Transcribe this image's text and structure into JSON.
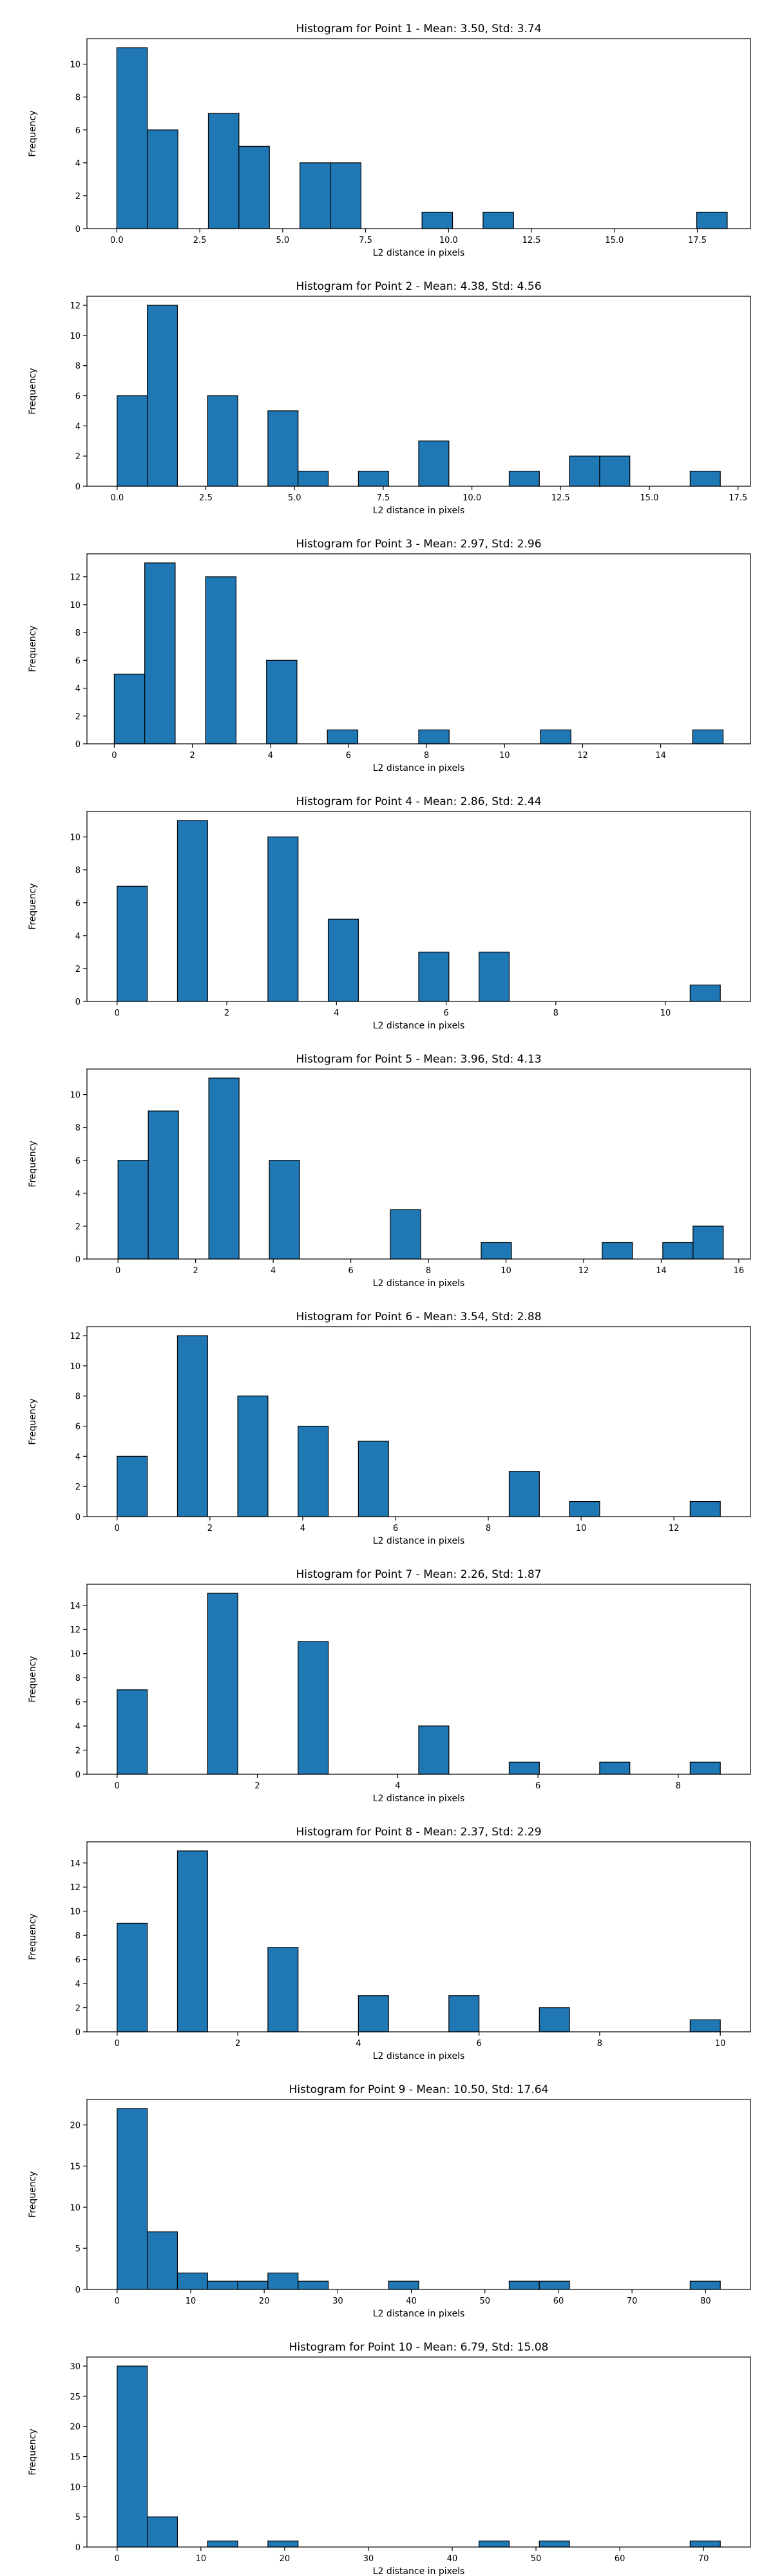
{
  "chart_data": [
    {
      "type": "bar",
      "title": "Histogram for Point 1 - Mean: 3.50, Std: 3.74",
      "xlabel": "L2 distance in pixels",
      "ylabel": "Frequency",
      "xlim": [
        -0.9,
        19.1
      ],
      "ylim": [
        0,
        11.55
      ],
      "xticks": [
        {
          "v": 0,
          "label": "0.0"
        },
        {
          "v": 2.5,
          "label": "2.5"
        },
        {
          "v": 5,
          "label": "5.0"
        },
        {
          "v": 7.5,
          "label": "7.5"
        },
        {
          "v": 10,
          "label": "10.0"
        },
        {
          "v": 12.5,
          "label": "12.5"
        },
        {
          "v": 15,
          "label": "15.0"
        },
        {
          "v": 17.5,
          "label": "17.5"
        }
      ],
      "yticks": [
        {
          "v": 0,
          "label": "0"
        },
        {
          "v": 2,
          "label": "2"
        },
        {
          "v": 4,
          "label": "4"
        },
        {
          "v": 6,
          "label": "6"
        },
        {
          "v": 8,
          "label": "8"
        },
        {
          "v": 10,
          "label": "10"
        }
      ],
      "bins": [
        0,
        0.92,
        1.84,
        2.76,
        3.68,
        4.6,
        5.52,
        6.44,
        7.36,
        8.28,
        9.2,
        10.12,
        11.04,
        11.96,
        12.88,
        13.8,
        14.72,
        15.64,
        16.56,
        17.48,
        18.4
      ],
      "counts": [
        11,
        6,
        0,
        7,
        5,
        0,
        4,
        4,
        0,
        0,
        1,
        0,
        1,
        0,
        0,
        0,
        0,
        0,
        0,
        1
      ]
    },
    {
      "type": "bar",
      "title": "Histogram for Point 2 - Mean: 4.38, Std: 4.56",
      "xlabel": "L2 distance in pixels",
      "ylabel": "Frequency",
      "xlim": [
        -0.85,
        17.85
      ],
      "ylim": [
        0,
        12.6
      ],
      "xticks": [
        {
          "v": 0,
          "label": "0.0"
        },
        {
          "v": 2.5,
          "label": "2.5"
        },
        {
          "v": 5,
          "label": "5.0"
        },
        {
          "v": 7.5,
          "label": "7.5"
        },
        {
          "v": 10,
          "label": "10.0"
        },
        {
          "v": 12.5,
          "label": "12.5"
        },
        {
          "v": 15,
          "label": "15.0"
        },
        {
          "v": 17.5,
          "label": "17.5"
        }
      ],
      "yticks": [
        {
          "v": 0,
          "label": "0"
        },
        {
          "v": 2,
          "label": "2"
        },
        {
          "v": 4,
          "label": "4"
        },
        {
          "v": 6,
          "label": "6"
        },
        {
          "v": 8,
          "label": "8"
        },
        {
          "v": 10,
          "label": "10"
        },
        {
          "v": 12,
          "label": "12"
        }
      ],
      "bins": [
        0,
        0.85,
        1.7,
        2.55,
        3.4,
        4.25,
        5.1,
        5.95,
        6.8,
        7.65,
        8.5,
        9.35,
        10.2,
        11.05,
        11.9,
        12.75,
        13.6,
        14.45,
        15.3,
        16.15,
        17.0
      ],
      "counts": [
        6,
        12,
        0,
        6,
        0,
        5,
        1,
        0,
        1,
        0,
        3,
        0,
        0,
        1,
        0,
        2,
        2,
        0,
        0,
        1
      ]
    },
    {
      "type": "bar",
      "title": "Histogram for Point 3 - Mean: 2.97, Std: 2.96",
      "xlabel": "L2 distance in pixels",
      "ylabel": "Frequency",
      "xlim": [
        -0.7,
        16.3
      ],
      "ylim": [
        0,
        13.65
      ],
      "xticks": [
        {
          "v": 0,
          "label": "0"
        },
        {
          "v": 2,
          "label": "2"
        },
        {
          "v": 4,
          "label": "4"
        },
        {
          "v": 6,
          "label": "6"
        },
        {
          "v": 8,
          "label": "8"
        },
        {
          "v": 10,
          "label": "10"
        },
        {
          "v": 12,
          "label": "12"
        },
        {
          "v": 14,
          "label": "14"
        }
      ],
      "yticks": [
        {
          "v": 0,
          "label": "0"
        },
        {
          "v": 2,
          "label": "2"
        },
        {
          "v": 4,
          "label": "4"
        },
        {
          "v": 6,
          "label": "6"
        },
        {
          "v": 8,
          "label": "8"
        },
        {
          "v": 10,
          "label": "10"
        },
        {
          "v": 12,
          "label": "12"
        }
      ],
      "bins": [
        0,
        0.78,
        1.56,
        2.34,
        3.12,
        3.9,
        4.68,
        5.46,
        6.24,
        7.02,
        7.8,
        8.58,
        9.36,
        10.14,
        10.92,
        11.7,
        12.48,
        13.26,
        14.04,
        14.82,
        15.6
      ],
      "counts": [
        5,
        13,
        0,
        12,
        0,
        6,
        0,
        1,
        0,
        0,
        1,
        0,
        0,
        0,
        1,
        0,
        0,
        0,
        0,
        1
      ]
    },
    {
      "type": "bar",
      "title": "Histogram for Point 4 - Mean: 2.86, Std: 2.44",
      "xlabel": "L2 distance in pixels",
      "ylabel": "Frequency",
      "xlim": [
        -0.55,
        11.55
      ],
      "ylim": [
        0,
        11.55
      ],
      "xticks": [
        {
          "v": 0,
          "label": "0"
        },
        {
          "v": 2,
          "label": "2"
        },
        {
          "v": 4,
          "label": "4"
        },
        {
          "v": 6,
          "label": "6"
        },
        {
          "v": 8,
          "label": "8"
        },
        {
          "v": 10,
          "label": "10"
        }
      ],
      "yticks": [
        {
          "v": 0,
          "label": "0"
        },
        {
          "v": 2,
          "label": "2"
        },
        {
          "v": 4,
          "label": "4"
        },
        {
          "v": 6,
          "label": "6"
        },
        {
          "v": 8,
          "label": "8"
        },
        {
          "v": 10,
          "label": "10"
        }
      ],
      "bins": [
        0,
        0.55,
        1.1,
        1.65,
        2.2,
        2.75,
        3.3,
        3.85,
        4.4,
        4.95,
        5.5,
        6.05,
        6.6,
        7.15,
        7.7,
        8.25,
        8.8,
        9.35,
        9.9,
        10.45,
        11.0
      ],
      "counts": [
        7,
        0,
        11,
        0,
        0,
        10,
        0,
        5,
        0,
        0,
        3,
        0,
        3,
        0,
        0,
        0,
        0,
        0,
        0,
        1
      ]
    },
    {
      "type": "bar",
      "title": "Histogram for Point 5 - Mean: 3.96, Std: 4.13",
      "xlabel": "L2 distance in pixels",
      "ylabel": "Frequency",
      "xlim": [
        -0.8,
        16.3
      ],
      "ylim": [
        0,
        11.55
      ],
      "xticks": [
        {
          "v": 0,
          "label": "0"
        },
        {
          "v": 2,
          "label": "2"
        },
        {
          "v": 4,
          "label": "4"
        },
        {
          "v": 6,
          "label": "6"
        },
        {
          "v": 8,
          "label": "8"
        },
        {
          "v": 10,
          "label": "10"
        },
        {
          "v": 12,
          "label": "12"
        },
        {
          "v": 14,
          "label": "14"
        },
        {
          "v": 16,
          "label": "16"
        }
      ],
      "yticks": [
        {
          "v": 0,
          "label": "0"
        },
        {
          "v": 2,
          "label": "2"
        },
        {
          "v": 4,
          "label": "4"
        },
        {
          "v": 6,
          "label": "6"
        },
        {
          "v": 8,
          "label": "8"
        },
        {
          "v": 10,
          "label": "10"
        }
      ],
      "bins": [
        0,
        0.78,
        1.56,
        2.34,
        3.12,
        3.9,
        4.68,
        5.46,
        6.24,
        7.02,
        7.8,
        8.58,
        9.36,
        10.14,
        10.92,
        11.7,
        12.48,
        13.26,
        14.04,
        14.82,
        15.6
      ],
      "counts": [
        6,
        9,
        0,
        11,
        0,
        6,
        0,
        0,
        0,
        3,
        0,
        0,
        1,
        0,
        0,
        0,
        1,
        0,
        1,
        2
      ]
    },
    {
      "type": "bar",
      "title": "Histogram for Point 6 - Mean: 3.54, Std: 2.88",
      "xlabel": "L2 distance in pixels",
      "ylabel": "Frequency",
      "xlim": [
        -0.65,
        13.65
      ],
      "ylim": [
        0,
        12.6
      ],
      "xticks": [
        {
          "v": 0,
          "label": "0"
        },
        {
          "v": 2,
          "label": "2"
        },
        {
          "v": 4,
          "label": "4"
        },
        {
          "v": 6,
          "label": "6"
        },
        {
          "v": 8,
          "label": "8"
        },
        {
          "v": 10,
          "label": "10"
        },
        {
          "v": 12,
          "label": "12"
        }
      ],
      "yticks": [
        {
          "v": 0,
          "label": "0"
        },
        {
          "v": 2,
          "label": "2"
        },
        {
          "v": 4,
          "label": "4"
        },
        {
          "v": 6,
          "label": "6"
        },
        {
          "v": 8,
          "label": "8"
        },
        {
          "v": 10,
          "label": "10"
        },
        {
          "v": 12,
          "label": "12"
        }
      ],
      "bins": [
        0,
        0.65,
        1.3,
        1.95,
        2.6,
        3.25,
        3.9,
        4.55,
        5.2,
        5.85,
        6.5,
        7.15,
        7.8,
        8.45,
        9.1,
        9.75,
        10.4,
        11.05,
        11.7,
        12.35,
        13.0
      ],
      "counts": [
        4,
        0,
        12,
        0,
        8,
        0,
        6,
        0,
        5,
        0,
        0,
        0,
        0,
        3,
        0,
        1,
        0,
        0,
        0,
        1
      ]
    },
    {
      "type": "bar",
      "title": "Histogram for Point 7 - Mean: 2.26, Std: 1.87",
      "xlabel": "L2 distance in pixels",
      "ylabel": "Frequency",
      "xlim": [
        -0.43,
        9.03
      ],
      "ylim": [
        0,
        15.75
      ],
      "xticks": [
        {
          "v": 0,
          "label": "0"
        },
        {
          "v": 2,
          "label": "2"
        },
        {
          "v": 4,
          "label": "4"
        },
        {
          "v": 6,
          "label": "6"
        },
        {
          "v": 8,
          "label": "8"
        }
      ],
      "yticks": [
        {
          "v": 0,
          "label": "0"
        },
        {
          "v": 2,
          "label": "2"
        },
        {
          "v": 4,
          "label": "4"
        },
        {
          "v": 6,
          "label": "6"
        },
        {
          "v": 8,
          "label": "8"
        },
        {
          "v": 10,
          "label": "10"
        },
        {
          "v": 12,
          "label": "12"
        },
        {
          "v": 14,
          "label": "14"
        }
      ],
      "bins": [
        0,
        0.43,
        0.86,
        1.29,
        1.72,
        2.15,
        2.58,
        3.01,
        3.44,
        3.87,
        4.3,
        4.73,
        5.16,
        5.59,
        6.02,
        6.45,
        6.88,
        7.31,
        7.74,
        8.17,
        8.6
      ],
      "counts": [
        7,
        0,
        0,
        15,
        0,
        0,
        11,
        0,
        0,
        0,
        4,
        0,
        0,
        1,
        0,
        0,
        1,
        0,
        0,
        1
      ]
    },
    {
      "type": "bar",
      "title": "Histogram for Point 8 - Mean: 2.37, Std: 2.29",
      "xlabel": "L2 distance in pixels",
      "ylabel": "Frequency",
      "xlim": [
        -0.5,
        10.5
      ],
      "ylim": [
        0,
        15.75
      ],
      "xticks": [
        {
          "v": 0,
          "label": "0"
        },
        {
          "v": 2,
          "label": "2"
        },
        {
          "v": 4,
          "label": "4"
        },
        {
          "v": 6,
          "label": "6"
        },
        {
          "v": 8,
          "label": "8"
        },
        {
          "v": 10,
          "label": "10"
        }
      ],
      "yticks": [
        {
          "v": 0,
          "label": "0"
        },
        {
          "v": 2,
          "label": "2"
        },
        {
          "v": 4,
          "label": "4"
        },
        {
          "v": 6,
          "label": "6"
        },
        {
          "v": 8,
          "label": "8"
        },
        {
          "v": 10,
          "label": "10"
        },
        {
          "v": 12,
          "label": "12"
        },
        {
          "v": 14,
          "label": "14"
        }
      ],
      "bins": [
        0,
        0.5,
        1.0,
        1.5,
        2.0,
        2.5,
        3.0,
        3.5,
        4.0,
        4.5,
        5.0,
        5.5,
        6.0,
        6.5,
        7.0,
        7.5,
        8.0,
        8.5,
        9.0,
        9.5,
        10.0
      ],
      "counts": [
        9,
        0,
        15,
        0,
        0,
        7,
        0,
        0,
        3,
        0,
        0,
        3,
        0,
        0,
        2,
        0,
        0,
        0,
        0,
        1
      ]
    },
    {
      "type": "bar",
      "title": "Histogram for Point 9 - Mean: 10.50, Std: 17.64",
      "xlabel": "L2 distance in pixels",
      "ylabel": "Frequency",
      "xlim": [
        -4.1,
        86.1
      ],
      "ylim": [
        0,
        23.1
      ],
      "xticks": [
        {
          "v": 0,
          "label": "0"
        },
        {
          "v": 10,
          "label": "10"
        },
        {
          "v": 20,
          "label": "20"
        },
        {
          "v": 30,
          "label": "30"
        },
        {
          "v": 40,
          "label": "40"
        },
        {
          "v": 50,
          "label": "50"
        },
        {
          "v": 60,
          "label": "60"
        },
        {
          "v": 70,
          "label": "70"
        },
        {
          "v": 80,
          "label": "80"
        }
      ],
      "yticks": [
        {
          "v": 0,
          "label": "0"
        },
        {
          "v": 5,
          "label": "5"
        },
        {
          "v": 10,
          "label": "10"
        },
        {
          "v": 15,
          "label": "15"
        },
        {
          "v": 20,
          "label": "20"
        }
      ],
      "bins": [
        0,
        4.1,
        8.2,
        12.3,
        16.4,
        20.5,
        24.6,
        28.7,
        32.8,
        36.9,
        41.0,
        45.1,
        49.2,
        53.3,
        57.4,
        61.5,
        65.6,
        69.7,
        73.8,
        77.9,
        82.0
      ],
      "counts": [
        22,
        7,
        2,
        1,
        1,
        2,
        1,
        0,
        0,
        1,
        0,
        0,
        0,
        1,
        1,
        0,
        0,
        0,
        0,
        1
      ]
    },
    {
      "type": "bar",
      "title": "Histogram for Point 10 - Mean: 6.79, Std: 15.08",
      "xlabel": "L2 distance in pixels",
      "ylabel": "Frequency",
      "xlim": [
        -3.6,
        75.6
      ],
      "ylim": [
        0,
        31.5
      ],
      "xticks": [
        {
          "v": 0,
          "label": "0"
        },
        {
          "v": 10,
          "label": "10"
        },
        {
          "v": 20,
          "label": "20"
        },
        {
          "v": 30,
          "label": "30"
        },
        {
          "v": 40,
          "label": "40"
        },
        {
          "v": 50,
          "label": "50"
        },
        {
          "v": 60,
          "label": "60"
        },
        {
          "v": 70,
          "label": "70"
        }
      ],
      "yticks": [
        {
          "v": 0,
          "label": "0"
        },
        {
          "v": 5,
          "label": "5"
        },
        {
          "v": 10,
          "label": "10"
        },
        {
          "v": 15,
          "label": "15"
        },
        {
          "v": 20,
          "label": "20"
        },
        {
          "v": 25,
          "label": "25"
        },
        {
          "v": 30,
          "label": "30"
        }
      ],
      "bins": [
        0,
        3.6,
        7.2,
        10.8,
        14.4,
        18.0,
        21.6,
        25.2,
        28.8,
        32.4,
        36.0,
        39.6,
        43.2,
        46.8,
        50.4,
        54.0,
        57.6,
        61.2,
        64.8,
        68.4,
        72.0
      ],
      "counts": [
        30,
        5,
        0,
        1,
        0,
        1,
        0,
        0,
        0,
        0,
        0,
        0,
        1,
        0,
        1,
        0,
        0,
        0,
        0,
        1
      ]
    }
  ]
}
